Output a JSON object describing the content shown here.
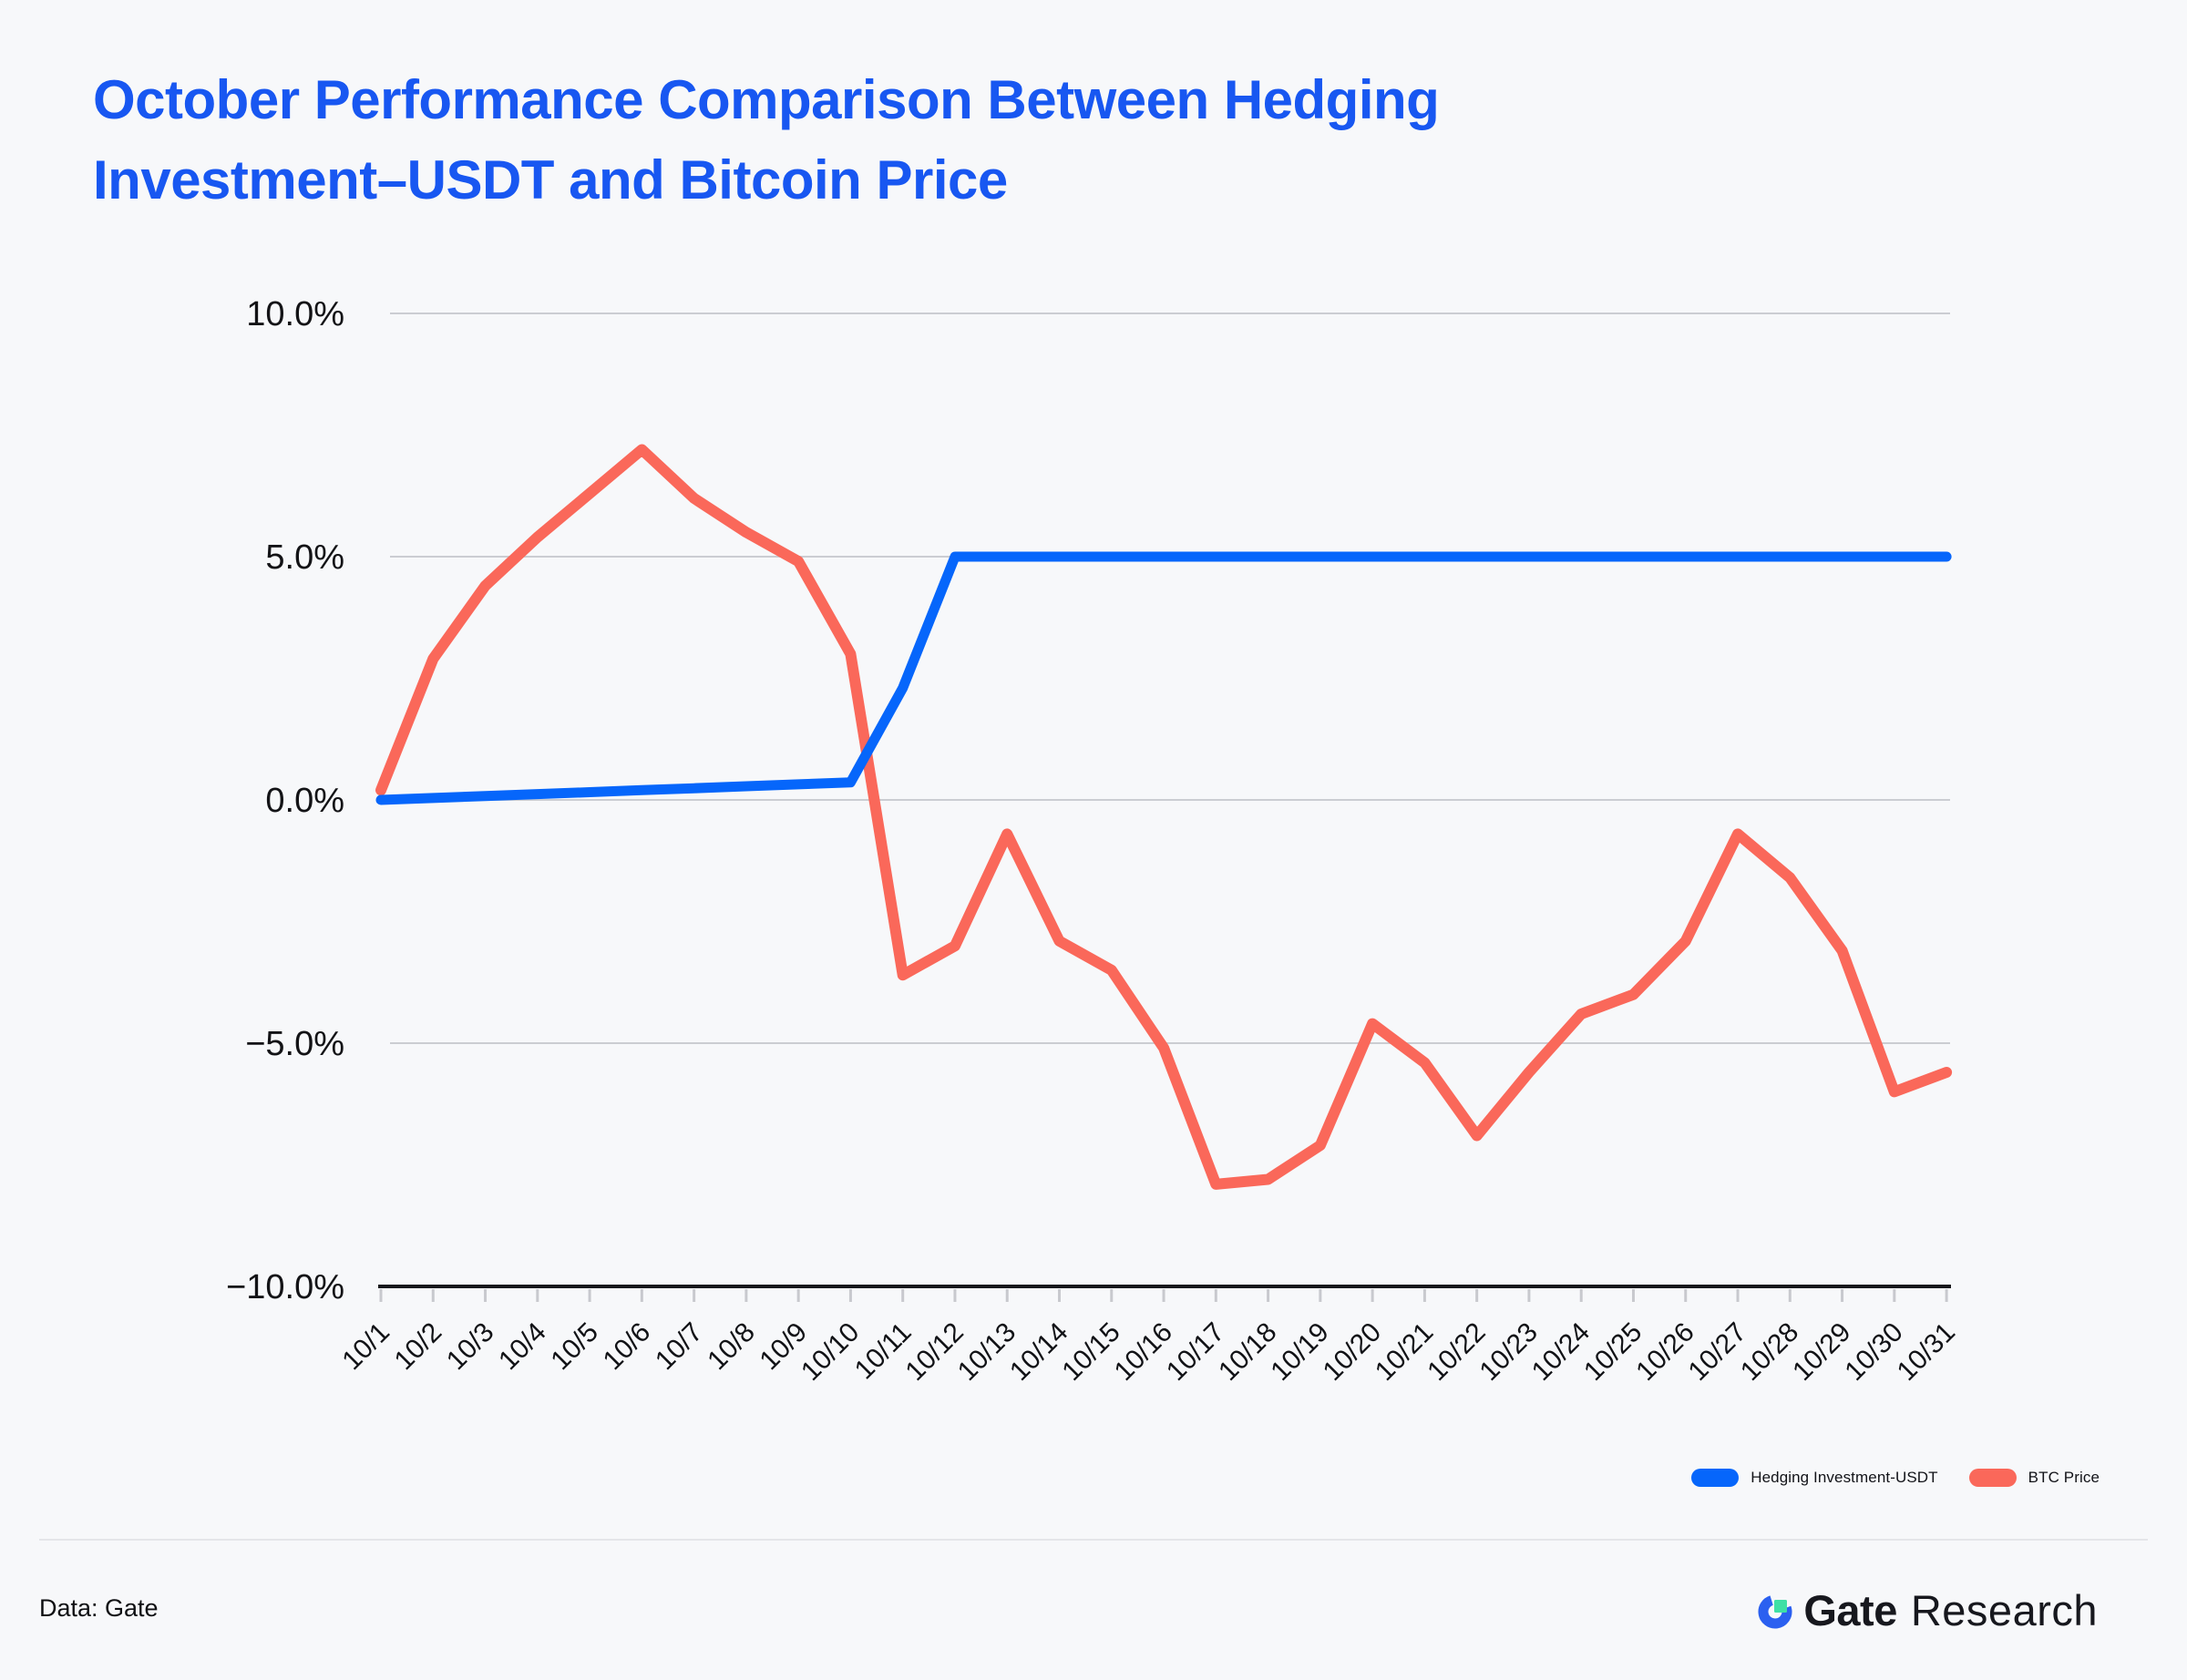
{
  "title": {
    "line1": "October Performance Comparison Between Hedging",
    "line2": "Investment–USDT and Bitcoin Price"
  },
  "chart_data": {
    "type": "line",
    "x": [
      "10/1",
      "10/2",
      "10/3",
      "10/4",
      "10/5",
      "10/6",
      "10/7",
      "10/8",
      "10/9",
      "10/10",
      "10/11",
      "10/12",
      "10/13",
      "10/14",
      "10/15",
      "10/16",
      "10/17",
      "10/18",
      "10/19",
      "10/20",
      "10/21",
      "10/22",
      "10/23",
      "10/24",
      "10/25",
      "10/26",
      "10/27",
      "10/28",
      "10/29",
      "10/30",
      "10/31"
    ],
    "series": [
      {
        "name": "BTC Price",
        "color": "#FA685A",
        "values": [
          0.2,
          2.9,
          4.4,
          5.4,
          6.3,
          7.2,
          6.2,
          5.5,
          4.9,
          3.0,
          -3.6,
          -3.0,
          -0.7,
          -2.9,
          -3.5,
          -5.1,
          -7.9,
          -7.8,
          -7.1,
          -4.6,
          -5.4,
          -6.9,
          -5.6,
          -4.4,
          -4.0,
          -2.9,
          -0.7,
          -1.6,
          -3.1,
          -6.0,
          -5.6
        ]
      },
      {
        "name": "Hedging Investment-USDT",
        "color": "#0666FB",
        "values": [
          0.0,
          0.04,
          0.08,
          0.12,
          0.16,
          0.2,
          0.24,
          0.28,
          0.32,
          0.36,
          2.3,
          5.0,
          5.0,
          5.0,
          5.0,
          5.0,
          5.0,
          5.0,
          5.0,
          5.0,
          5.0,
          5.0,
          5.0,
          5.0,
          5.0,
          5.0,
          5.0,
          5.0,
          5.0,
          5.0,
          5.0
        ]
      }
    ],
    "y_ticks": [
      {
        "label": "10.0%",
        "value": 10
      },
      {
        "label": "5.0%",
        "value": 5
      },
      {
        "label": "0.0%",
        "value": 0
      },
      {
        "label": "−5.0%",
        "value": -5
      },
      {
        "label": "−10.0%",
        "value": -10
      }
    ],
    "ylim": [
      -10,
      10
    ],
    "grid": "horizontal",
    "legend_position": "bottom-right",
    "axis_color": "#16171B",
    "grid_color": "#CBCDD2",
    "tick_color": "#C8C9CE",
    "label_color": "#131316"
  },
  "legend": {
    "items": [
      {
        "label": "Hedging Investment-USDT",
        "color": "#0666FB"
      },
      {
        "label": "BTC Price",
        "color": "#FA685A"
      }
    ]
  },
  "footer": {
    "source_label": "Data: Gate",
    "brand": "Gate",
    "brand_suffix": "Research",
    "logo_blue": "#2B60F0",
    "logo_green": "#3EE0A5"
  }
}
